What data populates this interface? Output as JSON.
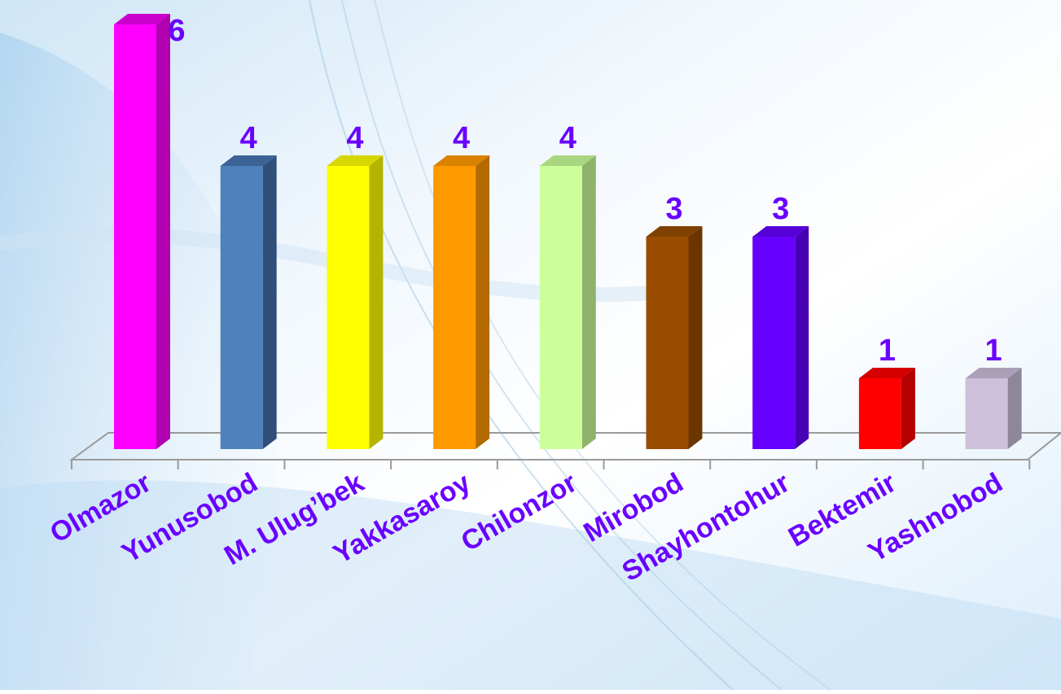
{
  "colors": {
    "label": "#6a00ff",
    "axis": "#9a9a9a"
  },
  "chart_data": {
    "type": "bar",
    "style": "3d-columns",
    "title": "",
    "xlabel": "",
    "ylabel": "",
    "ylim": [
      0,
      6
    ],
    "grid": false,
    "legend": "none",
    "categories": [
      "Olmazor",
      "Yunusobod",
      "M. Ulug’bek",
      "Yakkasaroy",
      "Chilonzor",
      "Mirobod",
      "Shayhontohur",
      "Bektemir",
      "Yashnobod"
    ],
    "values": [
      6,
      4,
      4,
      4,
      4,
      3,
      3,
      1,
      1
    ],
    "data_labels": [
      "6",
      "4",
      "4",
      "4",
      "4",
      "3",
      "3",
      "1",
      "1"
    ],
    "bar_colors": [
      {
        "front": "#ff00ff",
        "side": "#b000b0",
        "top": "#cc00cc"
      },
      {
        "front": "#4f81bd",
        "side": "#2f4f7a",
        "top": "#3b6396"
      },
      {
        "front": "#ffff00",
        "side": "#b3b300",
        "top": "#d6d600"
      },
      {
        "front": "#ff9900",
        "side": "#b36b00",
        "top": "#d98200"
      },
      {
        "front": "#ccff99",
        "side": "#8fb36b",
        "top": "#a9d680"
      },
      {
        "front": "#994c00",
        "side": "#6b3500",
        "top": "#804000"
      },
      {
        "front": "#6600ff",
        "side": "#4700b3",
        "top": "#5500d6"
      },
      {
        "front": "#ff0000",
        "side": "#b30000",
        "top": "#d60000"
      },
      {
        "front": "#ccc0da",
        "side": "#8f8699",
        "top": "#aaa0b8"
      }
    ]
  }
}
